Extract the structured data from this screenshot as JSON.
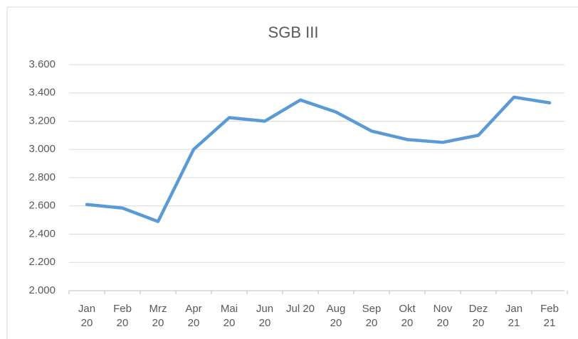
{
  "chart_data": {
    "type": "line",
    "title": "SGB III",
    "categories": [
      "Jan 20",
      "Feb 20",
      "Mrz 20",
      "Apr 20",
      "Mai 20",
      "Jun 20",
      "Jul 20",
      "Aug 20",
      "Sep 20",
      "Okt 20",
      "Nov 20",
      "Dez 20",
      "Jan 21",
      "Feb 21"
    ],
    "series": [
      {
        "name": "SGB III",
        "color": "#5b9bd5",
        "values": [
          2610,
          2585,
          2490,
          3000,
          3225,
          3200,
          3350,
          3265,
          3130,
          3070,
          3050,
          3100,
          3370,
          3330
        ]
      }
    ],
    "ylim": [
      2000,
      3600
    ],
    "yticks": [
      {
        "value": 2000,
        "label": "2.000"
      },
      {
        "value": 2200,
        "label": "2.200"
      },
      {
        "value": 2400,
        "label": "2.400"
      },
      {
        "value": 2600,
        "label": "2.600"
      },
      {
        "value": 2800,
        "label": "2.800"
      },
      {
        "value": 3000,
        "label": "3.000"
      },
      {
        "value": 3200,
        "label": "3.200"
      },
      {
        "value": 3400,
        "label": "3.400"
      },
      {
        "value": 3600,
        "label": "3.600"
      }
    ],
    "grid": true
  }
}
